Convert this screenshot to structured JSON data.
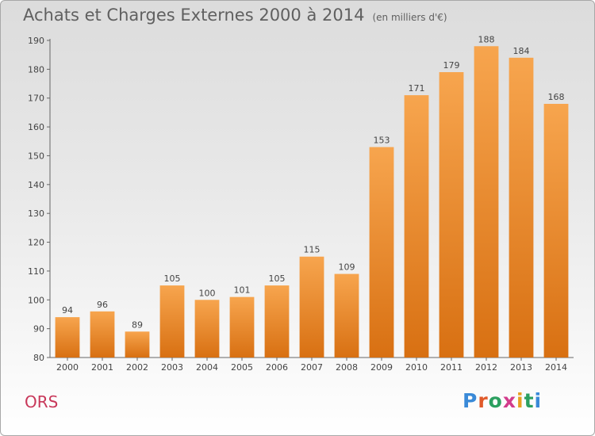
{
  "header": {
    "title": "Achats et Charges Externes 2000 à 2014",
    "subtitle": "(en milliers d'€)"
  },
  "footer": {
    "commune": "ORS",
    "logo_text": "Proxiti"
  },
  "colors": {
    "bar_light": "#f7a54e",
    "bar_dark": "#d87012",
    "commune": "#c8385a",
    "axis": "#666666"
  },
  "chart_data": {
    "type": "bar",
    "title": "Achats et Charges Externes 2000 à 2014",
    "subtitle": "(en milliers d'€)",
    "categories": [
      "2000",
      "2001",
      "2002",
      "2003",
      "2004",
      "2005",
      "2006",
      "2007",
      "2008",
      "2009",
      "2010",
      "2011",
      "2012",
      "2013",
      "2014"
    ],
    "values": [
      94,
      96,
      89,
      105,
      100,
      101,
      105,
      115,
      109,
      153,
      171,
      179,
      188,
      184,
      168
    ],
    "ylim": [
      80,
      190
    ],
    "yticks": [
      80,
      90,
      100,
      110,
      120,
      130,
      140,
      150,
      160,
      170,
      180,
      190
    ],
    "xlabel": "",
    "ylabel": "",
    "grid": false,
    "data_labels": true
  }
}
